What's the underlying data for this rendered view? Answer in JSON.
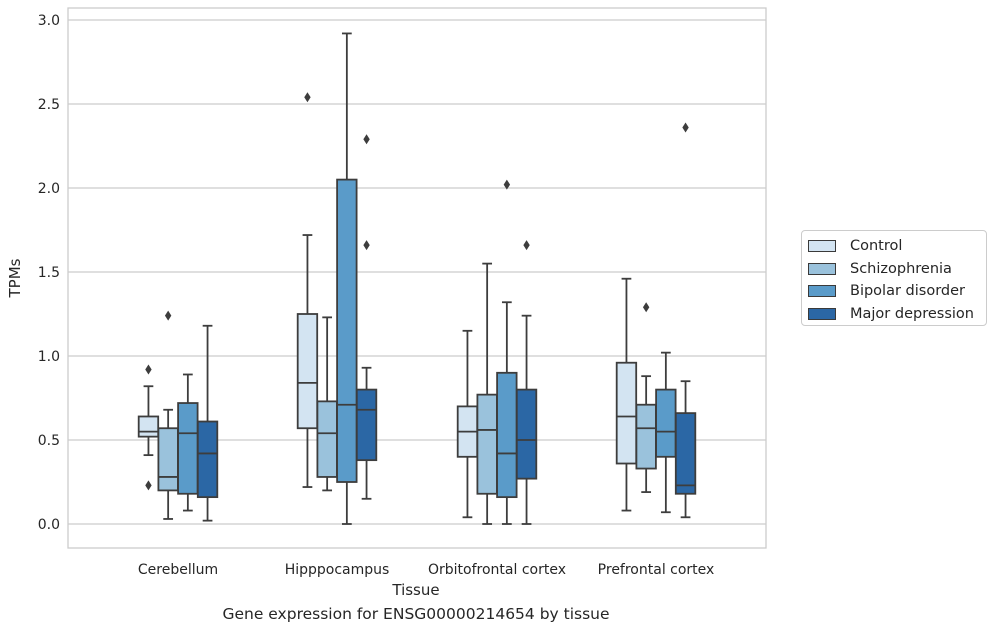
{
  "chart_data": {
    "type": "box",
    "xlabel": "Tissue",
    "ylabel": "TPMs",
    "ylim": [
      -0.14,
      3.08
    ],
    "yticks": [
      0.0,
      0.5,
      1.0,
      1.5,
      2.0,
      2.5,
      3.0
    ],
    "ytick_labels": [
      "0.0",
      "0.5",
      "1.0",
      "1.5",
      "2.0",
      "2.5",
      "3.0"
    ],
    "grid": "horizontal",
    "legend_position": "right",
    "categories": [
      "Cerebellum",
      "Hipppocampus",
      "Orbitofrontal cortex",
      "Prefrontal cortex"
    ],
    "series": [
      {
        "name": "Control",
        "color": "#d3e4f2",
        "boxes": [
          {
            "whisker_low": 0.41,
            "q1": 0.52,
            "median": 0.55,
            "q3": 0.64,
            "whisker_high": 0.82,
            "outliers": [
              0.92,
              0.23
            ]
          },
          {
            "whisker_low": 0.22,
            "q1": 0.57,
            "median": 0.84,
            "q3": 1.25,
            "whisker_high": 1.72,
            "outliers": [
              2.54
            ]
          },
          {
            "whisker_low": 0.04,
            "q1": 0.4,
            "median": 0.55,
            "q3": 0.7,
            "whisker_high": 1.15,
            "outliers": []
          },
          {
            "whisker_low": 0.08,
            "q1": 0.36,
            "median": 0.64,
            "q3": 0.96,
            "whisker_high": 1.46,
            "outliers": []
          }
        ]
      },
      {
        "name": "Schizophrenia",
        "color": "#9ac2dc",
        "boxes": [
          {
            "whisker_low": 0.03,
            "q1": 0.2,
            "median": 0.28,
            "q3": 0.57,
            "whisker_high": 0.68,
            "outliers": [
              1.24
            ]
          },
          {
            "whisker_low": 0.2,
            "q1": 0.28,
            "median": 0.54,
            "q3": 0.73,
            "whisker_high": 1.23,
            "outliers": []
          },
          {
            "whisker_low": 0.0,
            "q1": 0.18,
            "median": 0.56,
            "q3": 0.77,
            "whisker_high": 1.55,
            "outliers": []
          },
          {
            "whisker_low": 0.19,
            "q1": 0.33,
            "median": 0.57,
            "q3": 0.71,
            "whisker_high": 0.88,
            "outliers": [
              1.29
            ]
          }
        ]
      },
      {
        "name": "Bipolar disorder",
        "color": "#5a9bc9",
        "boxes": [
          {
            "whisker_low": 0.08,
            "q1": 0.18,
            "median": 0.54,
            "q3": 0.72,
            "whisker_high": 0.89,
            "outliers": []
          },
          {
            "whisker_low": 0.0,
            "q1": 0.25,
            "median": 0.71,
            "q3": 2.05,
            "whisker_high": 2.92,
            "outliers": []
          },
          {
            "whisker_low": 0.0,
            "q1": 0.16,
            "median": 0.42,
            "q3": 0.9,
            "whisker_high": 1.32,
            "outliers": [
              2.02
            ]
          },
          {
            "whisker_low": 0.07,
            "q1": 0.4,
            "median": 0.55,
            "q3": 0.8,
            "whisker_high": 1.02,
            "outliers": []
          }
        ]
      },
      {
        "name": "Major depression",
        "color": "#2b67a5",
        "boxes": [
          {
            "whisker_low": 0.02,
            "q1": 0.16,
            "median": 0.42,
            "q3": 0.61,
            "whisker_high": 1.18,
            "outliers": []
          },
          {
            "whisker_low": 0.15,
            "q1": 0.38,
            "median": 0.68,
            "q3": 0.8,
            "whisker_high": 0.93,
            "outliers": [
              1.66,
              2.29
            ]
          },
          {
            "whisker_low": 0.0,
            "q1": 0.27,
            "median": 0.5,
            "q3": 0.8,
            "whisker_high": 1.24,
            "outliers": [
              1.66
            ]
          },
          {
            "whisker_low": 0.04,
            "q1": 0.18,
            "median": 0.23,
            "q3": 0.66,
            "whisker_high": 0.85,
            "outliers": [
              2.36
            ]
          }
        ]
      }
    ],
    "caption": "Gene expression for ENSG00000214654 by tissue"
  }
}
